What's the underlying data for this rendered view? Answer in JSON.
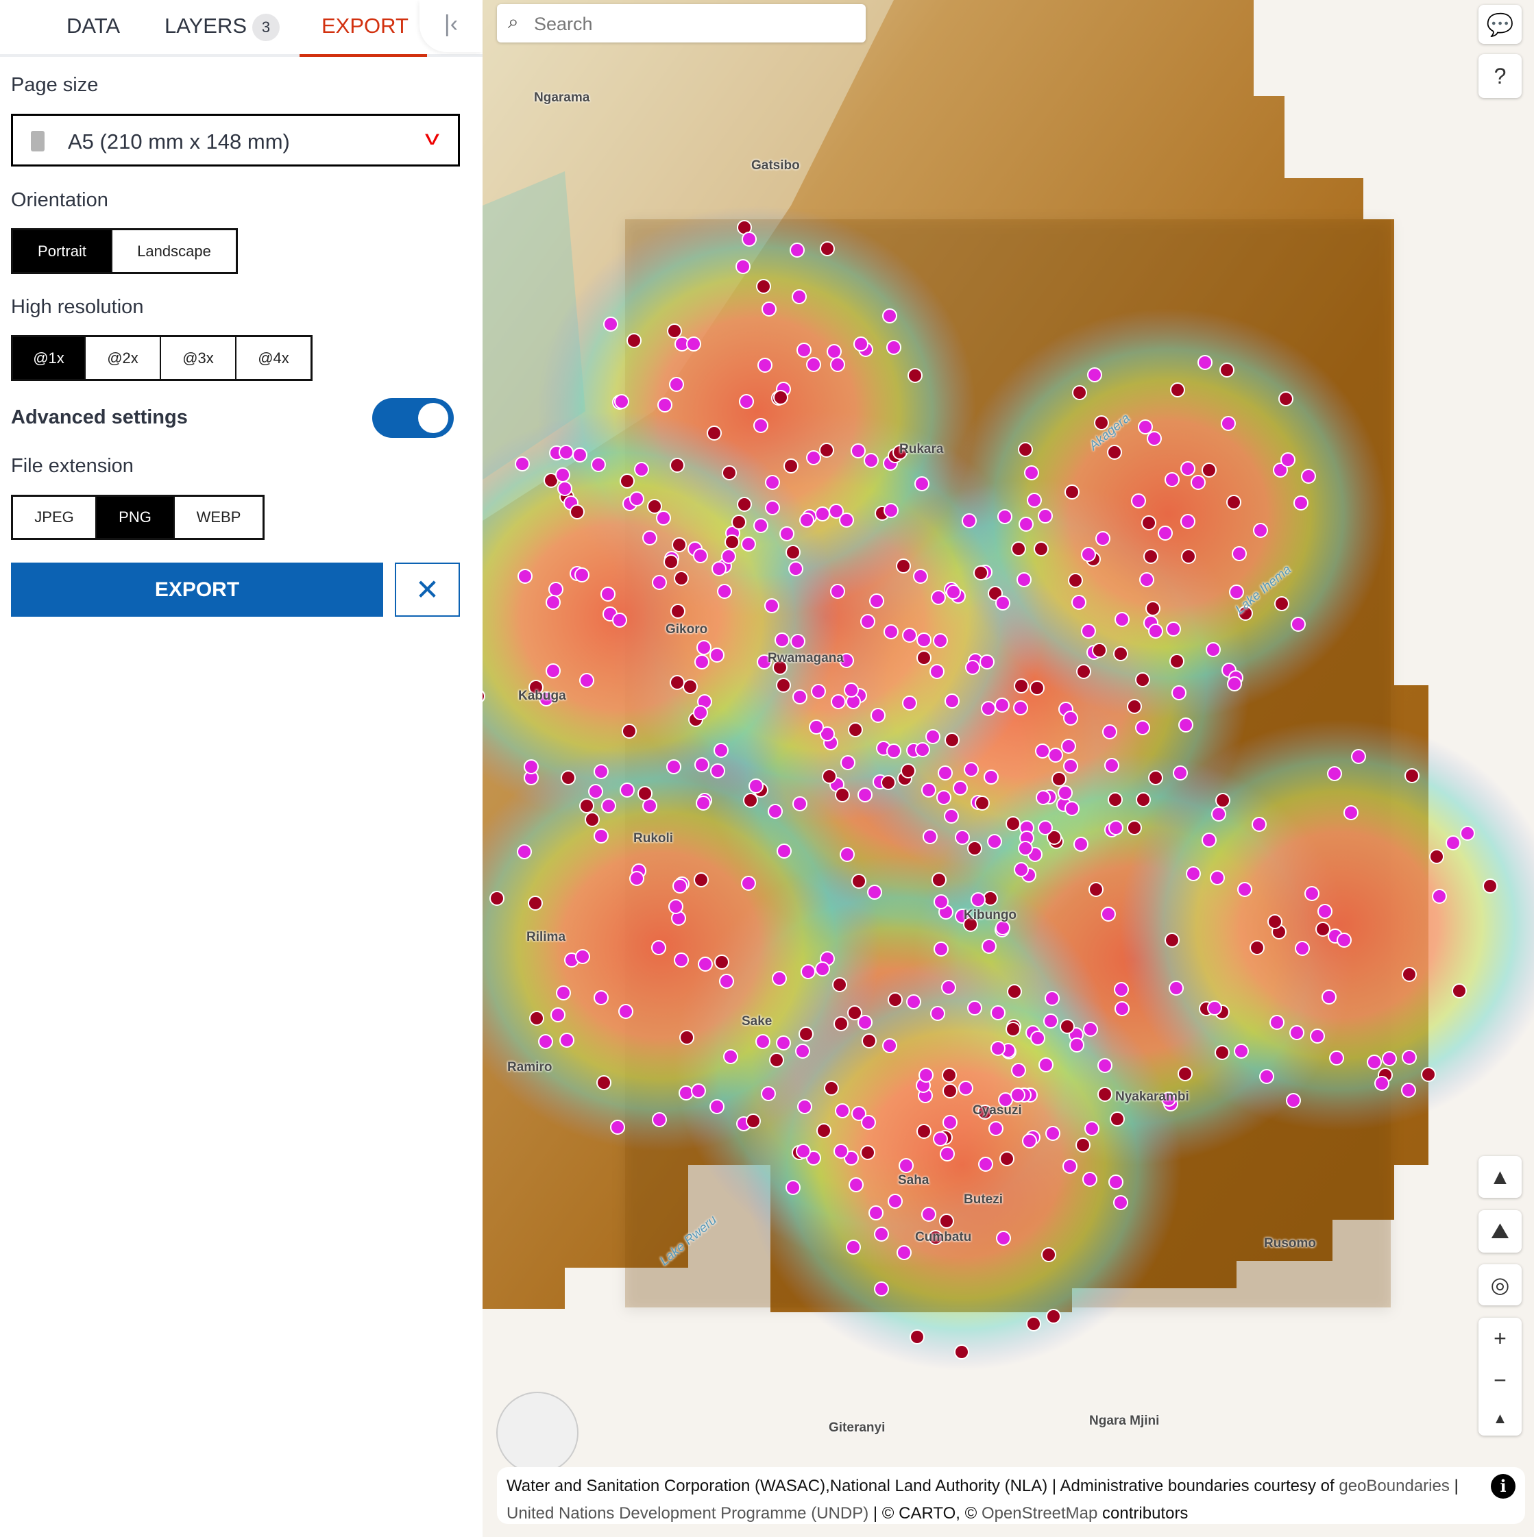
{
  "sidebar": {
    "tabs": [
      {
        "label": "DATA"
      },
      {
        "label": "LAYERS",
        "badge": "3"
      },
      {
        "label": "EXPORT",
        "active": true
      }
    ],
    "collapse_icon": "collapse-left-icon",
    "page_size": {
      "label": "Page size",
      "value": "A5 (210 mm x 148 mm)"
    },
    "orientation": {
      "label": "Orientation",
      "options": [
        "Portrait",
        "Landscape"
      ],
      "selected": "Portrait"
    },
    "resolution": {
      "label": "High resolution",
      "options": [
        "@1x",
        "@2x",
        "@3x",
        "@4x"
      ],
      "selected": "@1x"
    },
    "advanced": {
      "label": "Advanced settings",
      "enabled": true
    },
    "file_extension": {
      "label": "File extension",
      "options": [
        "JPEG",
        "PNG",
        "WEBP"
      ],
      "selected": "PNG"
    },
    "export_label": "EXPORT",
    "accent": "#0c62b3",
    "tab_active_color": "#d2310f"
  },
  "map": {
    "search_placeholder": "Search",
    "places": [
      "Ngarama",
      "Gatsibo",
      "Rukara",
      "Kabuga",
      "Gikoro",
      "Rwamagana",
      "Rukoli",
      "Rilima",
      "Kibungo",
      "Ramiro",
      "Sake",
      "Nyakarambi",
      "Cyasuzi",
      "Saha",
      "Butezi",
      "Cumbatu",
      "Rusomo",
      "Giteranyi",
      "Ngara Mjini",
      "Lake Rweru",
      "Lake Ihema",
      "Akagera"
    ],
    "attribution": {
      "line1_a": "Water and Sanitation Corporation (WASAC),National Land Authority (NLA) | Administrative boundaries courtesy of ",
      "line1_link": "geoBoundaries",
      "line1_b": " |",
      "line2_link": "United Nations Development Programme (UNDP)",
      "line2_b": " | © CARTO, © ",
      "line2_link2": "OpenStreetMap",
      "line2_c": " contributors"
    },
    "point_colors": [
      "#e020e0",
      "#a00020"
    ]
  }
}
